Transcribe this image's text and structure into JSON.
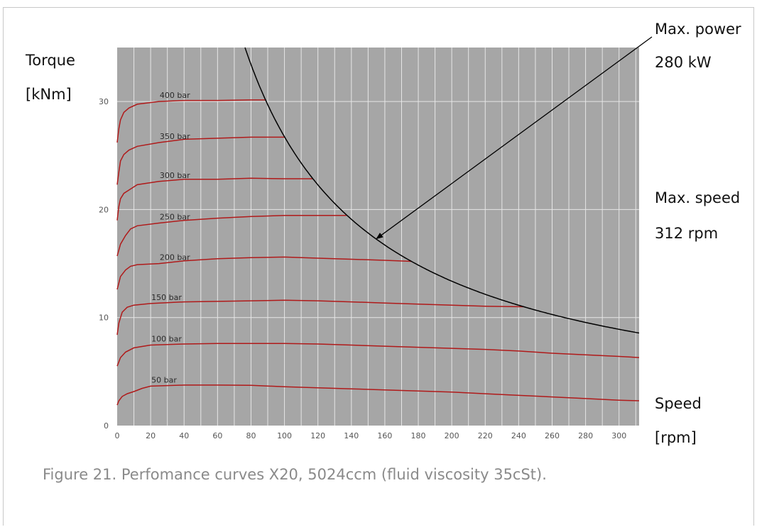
{
  "labels": {
    "torque": "Torque",
    "torque_unit": "[kNm]",
    "max_power": "Max. power",
    "max_power_value": "280 kW",
    "max_speed": "Max. speed",
    "max_speed_value": "312 rpm",
    "speed": "Speed",
    "speed_unit": "[rpm]"
  },
  "caption": "Figure 21. Perfomance curves X20, 5024ccm (fluid viscosity 35cSt).",
  "colors": {
    "plot_bg": "#a6a6a6",
    "grid": "#e6e6e6",
    "pressure_curve": "#b01a1a",
    "power_curve": "#000000"
  },
  "chart_data": {
    "type": "line",
    "xlim": [
      0,
      312
    ],
    "ylim": [
      0,
      35
    ],
    "x_ticks": [
      0,
      20,
      40,
      60,
      80,
      100,
      120,
      140,
      160,
      180,
      200,
      220,
      240,
      260,
      280,
      300
    ],
    "y_ticks": [
      0,
      10,
      20,
      30
    ],
    "grid": true,
    "series": [
      {
        "name": "400 bar",
        "points": [
          [
            0,
            26.2
          ],
          [
            1,
            27.5
          ],
          [
            2,
            28.3
          ],
          [
            4,
            29
          ],
          [
            7,
            29.4
          ],
          [
            12,
            29.75
          ],
          [
            25,
            30
          ],
          [
            40,
            30.1
          ],
          [
            60,
            30.1
          ],
          [
            80,
            30.15
          ],
          [
            89,
            30.15
          ]
        ]
      },
      {
        "name": "350 bar",
        "points": [
          [
            0,
            22.3
          ],
          [
            1,
            23.5
          ],
          [
            2,
            24.5
          ],
          [
            4,
            25.1
          ],
          [
            7,
            25.5
          ],
          [
            12,
            25.85
          ],
          [
            25,
            26.2
          ],
          [
            40,
            26.5
          ],
          [
            60,
            26.6
          ],
          [
            80,
            26.7
          ],
          [
            100,
            26.7
          ]
        ]
      },
      {
        "name": "300 bar",
        "points": [
          [
            0,
            19
          ],
          [
            1,
            20.3
          ],
          [
            2,
            21
          ],
          [
            4,
            21.5
          ],
          [
            7,
            21.8
          ],
          [
            12,
            22.3
          ],
          [
            25,
            22.6
          ],
          [
            40,
            22.8
          ],
          [
            60,
            22.8
          ],
          [
            80,
            22.9
          ],
          [
            100,
            22.85
          ],
          [
            117,
            22.85
          ]
        ]
      },
      {
        "name": "250 bar",
        "points": [
          [
            0,
            15.7
          ],
          [
            2,
            16.8
          ],
          [
            5,
            17.6
          ],
          [
            8,
            18.2
          ],
          [
            12,
            18.5
          ],
          [
            25,
            18.75
          ],
          [
            40,
            19
          ],
          [
            60,
            19.2
          ],
          [
            80,
            19.35
          ],
          [
            100,
            19.45
          ],
          [
            120,
            19.45
          ],
          [
            137,
            19.45
          ]
        ]
      },
      {
        "name": "200 bar",
        "points": [
          [
            0,
            12.6
          ],
          [
            2,
            13.8
          ],
          [
            5,
            14.4
          ],
          [
            8,
            14.75
          ],
          [
            12,
            14.9
          ],
          [
            25,
            15
          ],
          [
            40,
            15.25
          ],
          [
            60,
            15.45
          ],
          [
            80,
            15.55
          ],
          [
            100,
            15.6
          ],
          [
            120,
            15.5
          ],
          [
            140,
            15.4
          ],
          [
            160,
            15.3
          ],
          [
            176,
            15.2
          ]
        ]
      },
      {
        "name": "150 bar",
        "points": [
          [
            0,
            8.4
          ],
          [
            1,
            9.5
          ],
          [
            3,
            10.5
          ],
          [
            6,
            10.95
          ],
          [
            10,
            11.15
          ],
          [
            20,
            11.3
          ],
          [
            40,
            11.45
          ],
          [
            60,
            11.5
          ],
          [
            80,
            11.55
          ],
          [
            100,
            11.6
          ],
          [
            120,
            11.55
          ],
          [
            140,
            11.45
          ],
          [
            160,
            11.35
          ],
          [
            180,
            11.25
          ],
          [
            200,
            11.15
          ],
          [
            220,
            11.05
          ],
          [
            243,
            11.0
          ]
        ]
      },
      {
        "name": "100 bar",
        "points": [
          [
            0,
            5.5
          ],
          [
            2,
            6.3
          ],
          [
            5,
            6.8
          ],
          [
            10,
            7.2
          ],
          [
            20,
            7.45
          ],
          [
            40,
            7.55
          ],
          [
            60,
            7.6
          ],
          [
            80,
            7.6
          ],
          [
            100,
            7.6
          ],
          [
            120,
            7.55
          ],
          [
            140,
            7.45
          ],
          [
            160,
            7.35
          ],
          [
            180,
            7.25
          ],
          [
            200,
            7.15
          ],
          [
            220,
            7.05
          ],
          [
            240,
            6.9
          ],
          [
            260,
            6.7
          ],
          [
            280,
            6.55
          ],
          [
            300,
            6.4
          ],
          [
            312,
            6.3
          ]
        ]
      },
      {
        "name": "50 bar",
        "points": [
          [
            0,
            1.9
          ],
          [
            1,
            2.3
          ],
          [
            3,
            2.7
          ],
          [
            6,
            2.95
          ],
          [
            10,
            3.15
          ],
          [
            15,
            3.45
          ],
          [
            20,
            3.65
          ],
          [
            40,
            3.75
          ],
          [
            60,
            3.75
          ],
          [
            80,
            3.72
          ],
          [
            100,
            3.6
          ],
          [
            120,
            3.5
          ],
          [
            140,
            3.4
          ],
          [
            160,
            3.3
          ],
          [
            180,
            3.2
          ],
          [
            200,
            3.1
          ],
          [
            220,
            2.95
          ],
          [
            240,
            2.8
          ],
          [
            260,
            2.65
          ],
          [
            280,
            2.5
          ],
          [
            300,
            2.35
          ],
          [
            312,
            2.3
          ]
        ]
      }
    ],
    "power_curve": {
      "name": "Max. power 280 kW",
      "power_kw": 280,
      "x_range": [
        76,
        312
      ]
    },
    "annotation": {
      "text": "Max. power",
      "arrow_to": [
        155,
        17.3
      ]
    }
  }
}
